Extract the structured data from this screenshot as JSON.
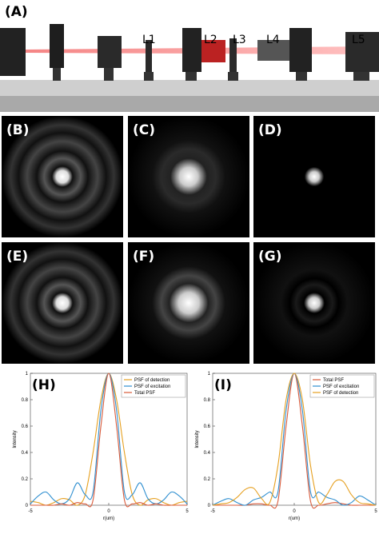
{
  "setup": {
    "label": "(A)",
    "lenses": [
      "L1",
      "L2",
      "L3",
      "L4",
      "L5"
    ]
  },
  "images": [
    "(B)",
    "(C)",
    "(D)",
    "(E)",
    "(F)",
    "(G)"
  ],
  "chart_data": [
    {
      "type": "line",
      "panel": "(H)",
      "xlabel": "r(um)",
      "ylabel": "Intensity",
      "x": [
        -5,
        -4.5,
        -4,
        -3.5,
        -3,
        -2.5,
        -2,
        -1.5,
        -1,
        -0.5,
        0,
        0.5,
        1,
        1.5,
        2,
        2.5,
        3,
        3.5,
        4,
        4.5,
        5
      ],
      "xlim": [
        -5,
        5
      ],
      "xticks": [
        -5,
        0,
        5
      ],
      "ylim": [
        0,
        1
      ],
      "yticks": [
        0,
        0.2,
        0.4,
        0.6,
        0.8,
        1
      ],
      "legend": "upper right",
      "series": [
        {
          "name": "PSF of detection",
          "color": "#e6a020",
          "values": [
            0.03,
            0.02,
            0.0,
            0.02,
            0.05,
            0.04,
            0.0,
            0.08,
            0.4,
            0.8,
            1,
            0.8,
            0.4,
            0.08,
            0.0,
            0.04,
            0.05,
            0.02,
            0.0,
            0.02,
            0.03
          ]
        },
        {
          "name": "PSF of excitation",
          "color": "#2f8fd0",
          "values": [
            0.01,
            0.07,
            0.1,
            0.04,
            0.01,
            0.05,
            0.17,
            0.08,
            0.1,
            0.72,
            1,
            0.72,
            0.1,
            0.08,
            0.17,
            0.05,
            0.01,
            0.04,
            0.1,
            0.07,
            0.01
          ]
        },
        {
          "name": "Total PSF",
          "color": "#d95a3a",
          "values": [
            0,
            0,
            0,
            0,
            0.01,
            0,
            0.02,
            0.01,
            0.04,
            0.6,
            1,
            0.6,
            0.04,
            0.01,
            0.02,
            0,
            0.01,
            0,
            0,
            0,
            0
          ]
        }
      ]
    },
    {
      "type": "line",
      "panel": "(I)",
      "xlabel": "r(um)",
      "ylabel": "Intensity",
      "x": [
        -5,
        -4.5,
        -4,
        -3.5,
        -3,
        -2.5,
        -2,
        -1.5,
        -1,
        -0.5,
        0,
        0.5,
        1,
        1.5,
        2,
        2.5,
        3,
        3.5,
        4,
        4.5,
        5
      ],
      "xlim": [
        -5,
        5
      ],
      "xticks": [
        -5,
        0,
        5
      ],
      "ylim": [
        0,
        1
      ],
      "yticks": [
        0,
        0.2,
        0.4,
        0.6,
        0.8,
        1
      ],
      "legend": "upper right",
      "series": [
        {
          "name": "Total PSF",
          "color": "#d95a3a",
          "values": [
            0,
            0,
            0,
            0,
            0,
            0.01,
            0.01,
            0,
            0.03,
            0.6,
            1,
            0.6,
            0.03,
            0,
            0.01,
            0.02,
            0.01,
            0,
            0,
            0,
            0
          ]
        },
        {
          "name": "PSF of excitation",
          "color": "#2f8fd0",
          "values": [
            0,
            0.03,
            0.05,
            0.02,
            0,
            0.04,
            0.06,
            0.1,
            0.1,
            0.72,
            1,
            0.72,
            0.1,
            0.1,
            0.06,
            0.04,
            0,
            0.02,
            0.07,
            0.04,
            0
          ]
        },
        {
          "name": "PSF of detection",
          "color": "#e6a020",
          "values": [
            0,
            0.01,
            0.02,
            0.06,
            0.12,
            0.13,
            0.05,
            0.02,
            0.3,
            0.8,
            1,
            0.8,
            0.3,
            0.02,
            0.08,
            0.18,
            0.18,
            0.08,
            0.02,
            0.01,
            0
          ]
        }
      ]
    }
  ]
}
